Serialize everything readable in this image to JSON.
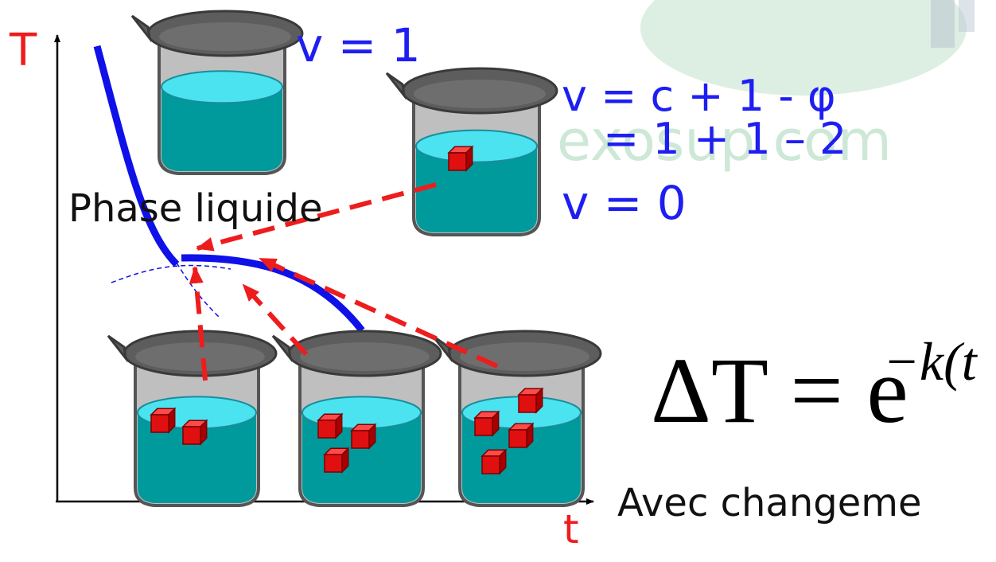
{
  "axes": {
    "y_label": "T",
    "x_label": "t"
  },
  "labels": {
    "v_one": "v = 1",
    "v_formula": "v = c + 1 - φ",
    "v_calc": "= 1 + 1 – 2",
    "v_zero": "v = 0",
    "phase": "Phase liquide",
    "equation_head": "ΔT = e",
    "equation_exp": "−k(t",
    "avec": "Avec changeme",
    "watermark": "exosup.com"
  },
  "colors": {
    "curve": "#1010e8",
    "arrows": "#ee1d1d",
    "text_blue": "#1e1ef2",
    "water": "#00999c",
    "water_top": "#4be3f0",
    "beaker": "#707070",
    "cube": "#e01010",
    "watermark": "#cde8d6"
  },
  "beakers": [
    {
      "id": "top-left",
      "cubes": 0
    },
    {
      "id": "top-right",
      "cubes": 1
    },
    {
      "id": "bottom-1",
      "cubes": 2
    },
    {
      "id": "bottom-2",
      "cubes": 3
    },
    {
      "id": "bottom-3",
      "cubes": 4
    }
  ]
}
